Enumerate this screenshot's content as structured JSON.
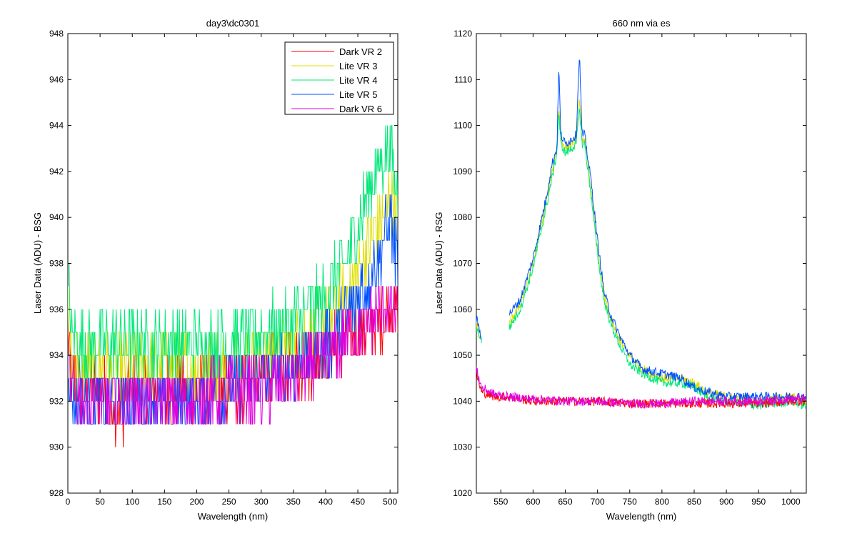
{
  "chart_data": [
    {
      "type": "line",
      "title": "day3\\dc0301",
      "xlabel": "Wavelength (nm)",
      "ylabel": "Laser Data (ADU) - BSG",
      "xlim": [
        0,
        512
      ],
      "ylim": [
        928,
        948
      ],
      "xticks": [
        0,
        50,
        100,
        150,
        200,
        250,
        300,
        350,
        400,
        450,
        500
      ],
      "yticks": [
        928,
        930,
        932,
        934,
        936,
        938,
        940,
        942,
        944,
        946,
        948
      ],
      "legend": "top-right",
      "series": [
        {
          "name": "Dark VR 2",
          "color": "#ff0000",
          "points": [
            [
              0,
              935
            ],
            [
              5,
              933
            ],
            [
              20,
              932.5
            ],
            [
              40,
              932.5
            ],
            [
              60,
              932.5
            ],
            [
              70,
              931
            ],
            [
              100,
              932.5
            ],
            [
              150,
              932.5
            ],
            [
              200,
              932.5
            ],
            [
              250,
              932.5
            ],
            [
              300,
              933
            ],
            [
              350,
              933.5
            ],
            [
              400,
              934
            ],
            [
              450,
              935
            ],
            [
              480,
              935.5
            ],
            [
              500,
              936
            ],
            [
              512,
              936
            ]
          ]
        },
        {
          "name": "Lite VR 3",
          "color": "#dede00",
          "points": [
            [
              0,
              936
            ],
            [
              5,
              934
            ],
            [
              20,
              933.5
            ],
            [
              50,
              933.5
            ],
            [
              100,
              933.5
            ],
            [
              150,
              933.5
            ],
            [
              200,
              933.5
            ],
            [
              250,
              933.5
            ],
            [
              300,
              934
            ],
            [
              350,
              934.5
            ],
            [
              400,
              935.5
            ],
            [
              430,
              936.5
            ],
            [
              450,
              937.5
            ],
            [
              470,
              939
            ],
            [
              490,
              940
            ],
            [
              500,
              941
            ],
            [
              510,
              940
            ]
          ]
        },
        {
          "name": "Lite VR 4",
          "color": "#00e878",
          "points": [
            [
              0,
              938
            ],
            [
              5,
              935
            ],
            [
              20,
              934.5
            ],
            [
              50,
              934.5
            ],
            [
              100,
              934.5
            ],
            [
              150,
              934.5
            ],
            [
              200,
              934.5
            ],
            [
              250,
              934.5
            ],
            [
              300,
              935
            ],
            [
              350,
              935.5
            ],
            [
              400,
              936.5
            ],
            [
              430,
              938
            ],
            [
              450,
              939.5
            ],
            [
              470,
              941.5
            ],
            [
              490,
              942.5
            ],
            [
              500,
              943
            ],
            [
              512,
              941
            ]
          ]
        },
        {
          "name": "Lite VR 5",
          "color": "#0050ff",
          "points": [
            [
              0,
              934
            ],
            [
              5,
              932
            ],
            [
              20,
              932
            ],
            [
              50,
              932
            ],
            [
              100,
              932
            ],
            [
              150,
              932
            ],
            [
              200,
              932
            ],
            [
              250,
              932.5
            ],
            [
              300,
              933
            ],
            [
              350,
              933.5
            ],
            [
              400,
              934.5
            ],
            [
              430,
              935.5
            ],
            [
              450,
              936.5
            ],
            [
              470,
              937.5
            ],
            [
              490,
              939
            ],
            [
              500,
              940
            ],
            [
              512,
              938
            ]
          ]
        },
        {
          "name": "Dark VR 6",
          "color": "#e000e0",
          "points": [
            [
              0,
              934
            ],
            [
              5,
              932.5
            ],
            [
              20,
              932
            ],
            [
              50,
              932
            ],
            [
              100,
              932
            ],
            [
              150,
              932
            ],
            [
              200,
              932
            ],
            [
              250,
              932.5
            ],
            [
              300,
              932.5
            ],
            [
              350,
              933
            ],
            [
              400,
              934
            ],
            [
              450,
              935
            ],
            [
              470,
              935.5
            ],
            [
              490,
              936
            ],
            [
              500,
              936
            ],
            [
              512,
              936
            ]
          ]
        }
      ]
    },
    {
      "type": "line",
      "title": "660 nm via es",
      "xlabel": "Wavelength (nm)",
      "ylabel": "Laser Data (ADU) - RSG",
      "xlim": [
        512,
        1024
      ],
      "ylim": [
        1020,
        1120
      ],
      "xticks": [
        550,
        600,
        650,
        700,
        750,
        800,
        850,
        900,
        950,
        1000
      ],
      "yticks": [
        1020,
        1030,
        1040,
        1050,
        1060,
        1070,
        1080,
        1090,
        1100,
        1110,
        1120
      ],
      "series": [
        {
          "color": "#dede00",
          "points": [
            [
              512,
              1057
            ],
            [
              518,
              1054
            ],
            [
              520,
              1053
            ],
            [
              520,
              null
            ],
            [
              563,
              1057
            ],
            [
              580,
              1061
            ],
            [
              600,
              1070
            ],
            [
              620,
              1083
            ],
            [
              630,
              1090
            ],
            [
              637,
              1095
            ],
            [
              640,
              1104
            ],
            [
              643,
              1097
            ],
            [
              650,
              1095
            ],
            [
              660,
              1096
            ],
            [
              667,
              1097
            ],
            [
              672,
              1105
            ],
            [
              676,
              1097
            ],
            [
              680,
              1097
            ],
            [
              690,
              1086
            ],
            [
              700,
              1073
            ],
            [
              710,
              1063
            ],
            [
              720,
              1058
            ],
            [
              735,
              1053
            ],
            [
              750,
              1050
            ],
            [
              770,
              1047
            ],
            [
              800,
              1045
            ],
            [
              830,
              1045
            ],
            [
              850,
              1044
            ],
            [
              870,
              1042
            ],
            [
              900,
              1041
            ],
            [
              950,
              1040
            ],
            [
              1000,
              1041
            ],
            [
              1024,
              1040
            ]
          ]
        },
        {
          "color": "#00e878",
          "points": [
            [
              512,
              1056
            ],
            [
              518,
              1054
            ],
            [
              520,
              1053
            ],
            [
              520,
              null
            ],
            [
              563,
              1056
            ],
            [
              580,
              1060
            ],
            [
              600,
              1069
            ],
            [
              620,
              1082
            ],
            [
              630,
              1089
            ],
            [
              637,
              1094
            ],
            [
              640,
              1103
            ],
            [
              643,
              1096
            ],
            [
              650,
              1094
            ],
            [
              660,
              1095
            ],
            [
              667,
              1096
            ],
            [
              672,
              1104
            ],
            [
              676,
              1096
            ],
            [
              680,
              1096
            ],
            [
              690,
              1085
            ],
            [
              700,
              1072
            ],
            [
              710,
              1062
            ],
            [
              720,
              1057
            ],
            [
              735,
              1052
            ],
            [
              750,
              1048
            ],
            [
              770,
              1046
            ],
            [
              800,
              1044
            ],
            [
              830,
              1044
            ],
            [
              850,
              1043
            ],
            [
              870,
              1041
            ],
            [
              900,
              1040
            ],
            [
              950,
              1039
            ],
            [
              1000,
              1040
            ],
            [
              1024,
              1039
            ]
          ]
        },
        {
          "color": "#0050ff",
          "points": [
            [
              512,
              1058
            ],
            [
              518,
              1055
            ],
            [
              520,
              1054
            ],
            [
              520,
              null
            ],
            [
              563,
              1059
            ],
            [
              580,
              1062
            ],
            [
              600,
              1071
            ],
            [
              620,
              1084
            ],
            [
              630,
              1092
            ],
            [
              637,
              1095
            ],
            [
              640,
              1113
            ],
            [
              643,
              1098
            ],
            [
              650,
              1096
            ],
            [
              660,
              1097
            ],
            [
              667,
              1098
            ],
            [
              672,
              1116
            ],
            [
              676,
              1098
            ],
            [
              680,
              1098
            ],
            [
              690,
              1088
            ],
            [
              700,
              1075
            ],
            [
              710,
              1064
            ],
            [
              720,
              1059
            ],
            [
              735,
              1054
            ],
            [
              750,
              1050
            ],
            [
              770,
              1047
            ],
            [
              800,
              1046
            ],
            [
              830,
              1045
            ],
            [
              850,
              1043
            ],
            [
              870,
              1042
            ],
            [
              900,
              1041
            ],
            [
              950,
              1041
            ],
            [
              1000,
              1041
            ],
            [
              1024,
              1041
            ]
          ]
        },
        {
          "color": "#ff0000",
          "points": [
            [
              512,
              1046
            ],
            [
              520,
              1042
            ],
            [
              540,
              1041
            ],
            [
              560,
              1041
            ],
            [
              600,
              1040
            ],
            [
              650,
              1040
            ],
            [
              700,
              1040
            ],
            [
              750,
              1039.5
            ],
            [
              800,
              1039.5
            ],
            [
              850,
              1039.5
            ],
            [
              900,
              1039.5
            ],
            [
              950,
              1039.5
            ],
            [
              1000,
              1040
            ],
            [
              1024,
              1040
            ]
          ]
        },
        {
          "color": "#e000e0",
          "points": [
            [
              512,
              1047
            ],
            [
              520,
              1043
            ],
            [
              540,
              1041.5
            ],
            [
              560,
              1041
            ],
            [
              600,
              1040.5
            ],
            [
              650,
              1040
            ],
            [
              700,
              1040
            ],
            [
              750,
              1039.5
            ],
            [
              800,
              1039.5
            ],
            [
              850,
              1040
            ],
            [
              900,
              1040
            ],
            [
              950,
              1040
            ],
            [
              1000,
              1040.5
            ],
            [
              1024,
              1040.5
            ]
          ]
        }
      ]
    }
  ]
}
